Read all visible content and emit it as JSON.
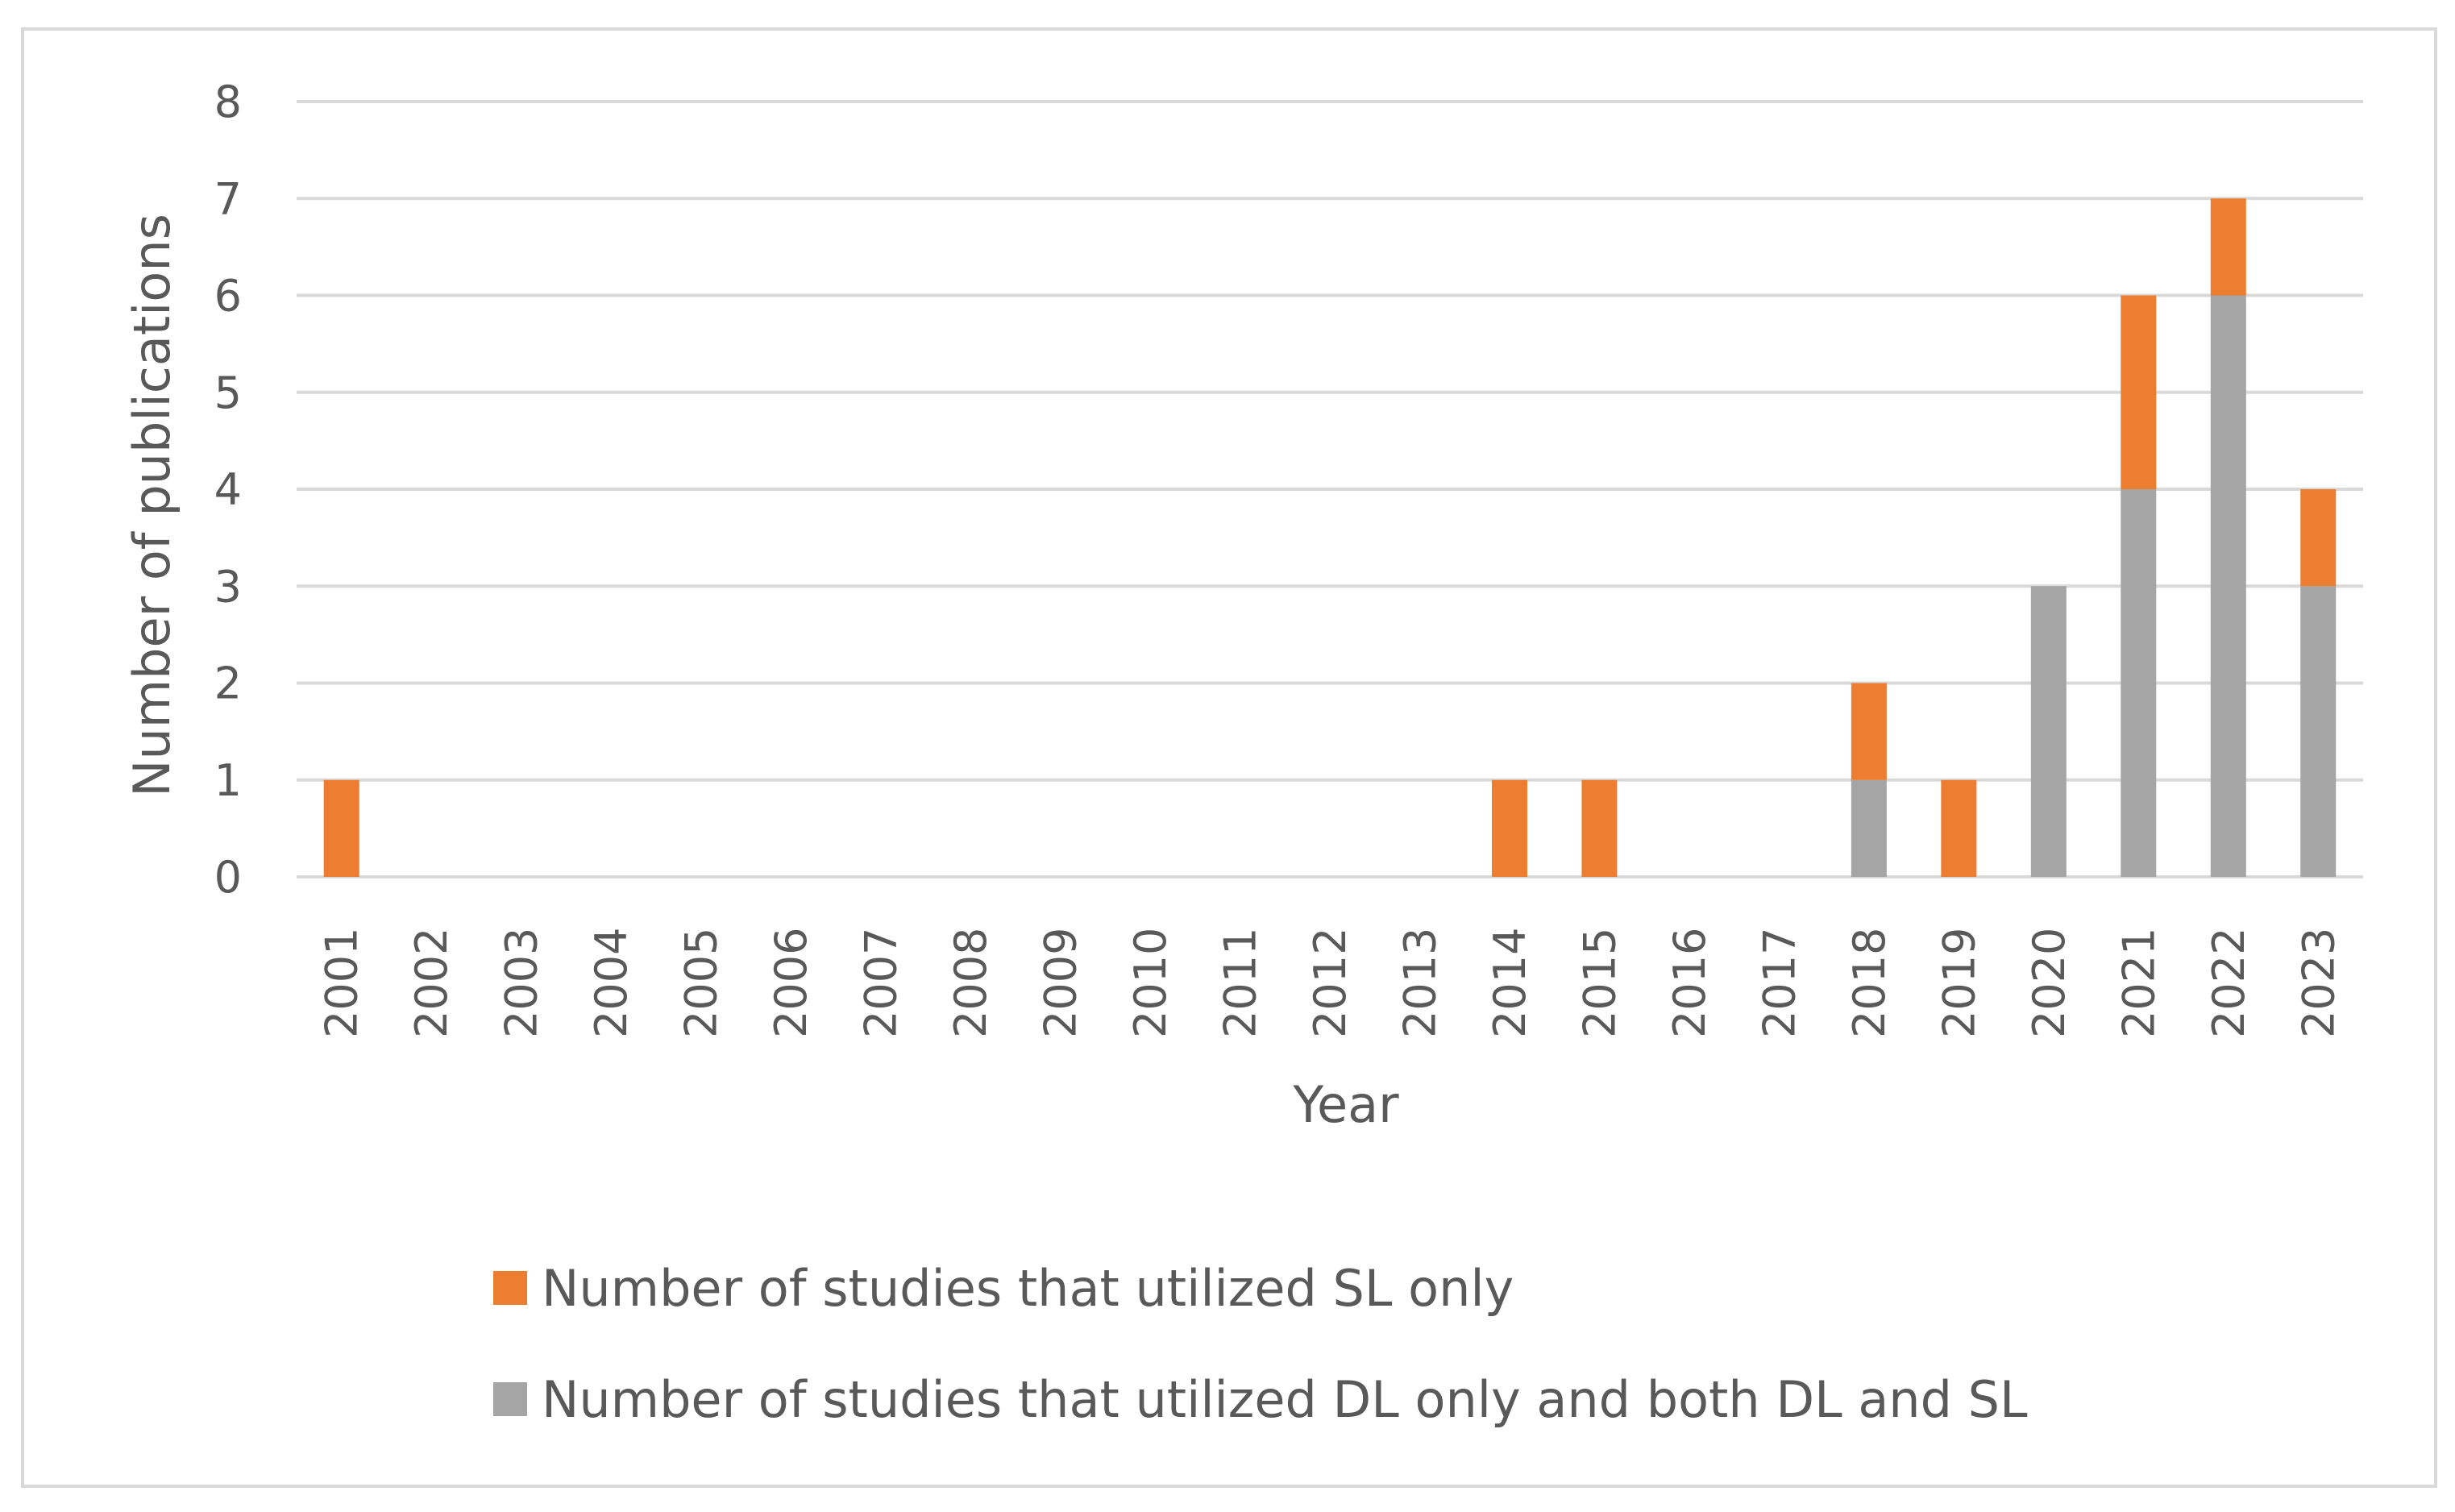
{
  "chart_data": {
    "type": "bar",
    "stacked": true,
    "title": "",
    "xlabel": "Year",
    "ylabel": "Number of publications",
    "ylim": [
      0,
      8
    ],
    "yticks": [
      0,
      1,
      2,
      3,
      4,
      5,
      6,
      7,
      8
    ],
    "grid": "horizontal",
    "legend_position": "bottom",
    "categories": [
      "2001",
      "2002",
      "2003",
      "2004",
      "2005",
      "2006",
      "2007",
      "2008",
      "2009",
      "2010",
      "2011",
      "2012",
      "2013",
      "2014",
      "2015",
      "2016",
      "2017",
      "2018",
      "2019",
      "2020",
      "2021",
      "2022",
      "2023"
    ],
    "series": [
      {
        "name": "Number of studies that utilized DL only and both DL and SL",
        "color": "#A5A5A5",
        "values": [
          0,
          0,
          0,
          0,
          0,
          0,
          0,
          0,
          0,
          0,
          0,
          0,
          0,
          0,
          0,
          0,
          0,
          1,
          0,
          3,
          4,
          6,
          3
        ]
      },
      {
        "name": "Number of studies that utilized SL only",
        "color": "#ED7D31",
        "values": [
          1,
          0,
          0,
          0,
          0,
          0,
          0,
          0,
          0,
          0,
          0,
          0,
          0,
          1,
          1,
          0,
          0,
          1,
          1,
          0,
          2,
          1,
          1
        ]
      }
    ],
    "legend_order": [
      1,
      0
    ]
  }
}
